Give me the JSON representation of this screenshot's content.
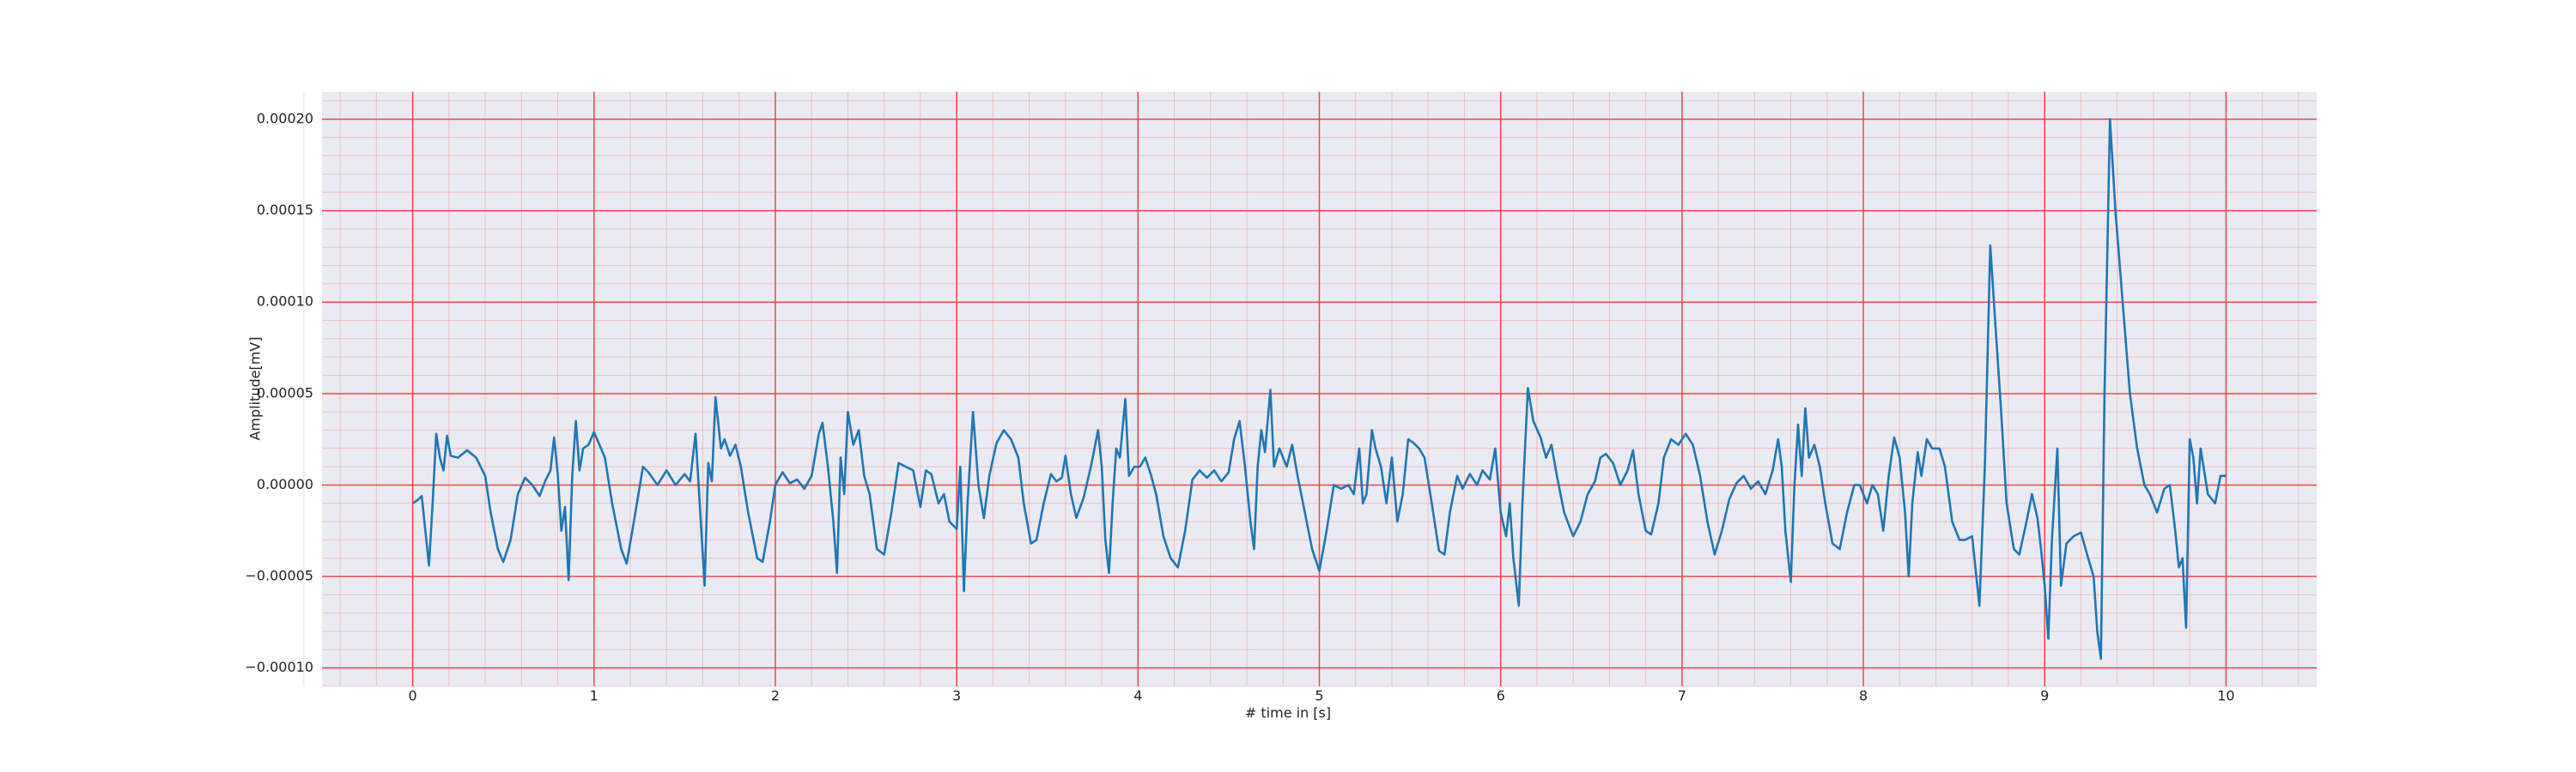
{
  "chart_data": {
    "type": "line",
    "xlabel": "# time in [s]",
    "ylabel": "Amplitude[mV]",
    "color": "#1f77b4",
    "grid": true,
    "grid_color": "#f04545",
    "minor_grid": true,
    "background": "#eaeaf2",
    "xlim": [
      -0.5,
      10.5
    ],
    "xticks": [
      0,
      1,
      2,
      3,
      4,
      5,
      6,
      7,
      8,
      9,
      10
    ],
    "ylim": [
      -0.00011,
      0.000215
    ],
    "yticks": [
      {
        "value": -0.0001,
        "label": "−0.00010"
      },
      {
        "value": -5e-05,
        "label": "−0.00005"
      },
      {
        "value": 0,
        "label": "0.00000"
      },
      {
        "value": 5e-05,
        "label": "0.00005"
      },
      {
        "value": 0.0001,
        "label": "0.00010"
      },
      {
        "value": 0.00015,
        "label": "0.00015"
      },
      {
        "value": 0.0002,
        "label": "0.00020"
      }
    ],
    "x": [
      0.0,
      0.03,
      0.05,
      0.07,
      0.09,
      0.11,
      0.13,
      0.15,
      0.17,
      0.19,
      0.21,
      0.25,
      0.3,
      0.35,
      0.4,
      0.43,
      0.47,
      0.5,
      0.54,
      0.58,
      0.62,
      0.66,
      0.7,
      0.73,
      0.76,
      0.78,
      0.8,
      0.82,
      0.84,
      0.86,
      0.88,
      0.9,
      0.92,
      0.94,
      0.97,
      1.0,
      1.03,
      1.06,
      1.1,
      1.15,
      1.18,
      1.22,
      1.27,
      1.3,
      1.35,
      1.4,
      1.45,
      1.5,
      1.53,
      1.56,
      1.58,
      1.61,
      1.63,
      1.65,
      1.67,
      1.7,
      1.72,
      1.75,
      1.78,
      1.81,
      1.85,
      1.9,
      1.93,
      1.97,
      2.0,
      2.04,
      2.08,
      2.12,
      2.16,
      2.2,
      2.24,
      2.26,
      2.29,
      2.32,
      2.34,
      2.36,
      2.38,
      2.4,
      2.43,
      2.46,
      2.49,
      2.52,
      2.56,
      2.6,
      2.64,
      2.68,
      2.72,
      2.76,
      2.8,
      2.83,
      2.86,
      2.9,
      2.93,
      2.96,
      3.0,
      3.02,
      3.04,
      3.06,
      3.09,
      3.12,
      3.15,
      3.18,
      3.22,
      3.26,
      3.3,
      3.34,
      3.37,
      3.41,
      3.44,
      3.48,
      3.52,
      3.55,
      3.58,
      3.6,
      3.63,
      3.66,
      3.7,
      3.74,
      3.78,
      3.8,
      3.82,
      3.84,
      3.86,
      3.88,
      3.9,
      3.93,
      3.95,
      3.98,
      4.01,
      4.04,
      4.07,
      4.1,
      4.14,
      4.18,
      4.22,
      4.26,
      4.3,
      4.34,
      4.38,
      4.42,
      4.46,
      4.5,
      4.53,
      4.56,
      4.59,
      4.62,
      4.64,
      4.66,
      4.68,
      4.7,
      4.73,
      4.75,
      4.78,
      4.82,
      4.85,
      4.88,
      4.92,
      4.96,
      5.0,
      5.04,
      5.08,
      5.12,
      5.16,
      5.19,
      5.22,
      5.24,
      5.26,
      5.29,
      5.31,
      5.34,
      5.37,
      5.4,
      5.43,
      5.46,
      5.49,
      5.52,
      5.55,
      5.58,
      5.62,
      5.66,
      5.69,
      5.72,
      5.76,
      5.79,
      5.83,
      5.87,
      5.9,
      5.94,
      5.97,
      6.0,
      6.03,
      6.05,
      6.07,
      6.1,
      6.12,
      6.15,
      6.18,
      6.22,
      6.25,
      6.28,
      6.31,
      6.35,
      6.4,
      6.44,
      6.48,
      6.52,
      6.55,
      6.58,
      6.62,
      6.66,
      6.7,
      6.73,
      6.76,
      6.8,
      6.83,
      6.87,
      6.9,
      6.94,
      6.98,
      7.02,
      7.06,
      7.1,
      7.14,
      7.18,
      7.22,
      7.26,
      7.3,
      7.34,
      7.38,
      7.42,
      7.46,
      7.5,
      7.53,
      7.55,
      7.57,
      7.6,
      7.62,
      7.64,
      7.66,
      7.68,
      7.7,
      7.73,
      7.76,
      7.79,
      7.83,
      7.87,
      7.91,
      7.95,
      7.98,
      8.02,
      8.05,
      8.08,
      8.11,
      8.14,
      8.17,
      8.2,
      8.23,
      8.25,
      8.27,
      8.3,
      8.32,
      8.35,
      8.38,
      8.42,
      8.45,
      8.49,
      8.53,
      8.56,
      8.6,
      8.64,
      8.67,
      8.7,
      8.73,
      8.76,
      8.79,
      8.83,
      8.86,
      8.9,
      8.93,
      8.96,
      8.98,
      9.0,
      9.02,
      9.04,
      9.07,
      9.09,
      9.12,
      9.16,
      9.2,
      9.24,
      9.27,
      9.29,
      9.31,
      9.33,
      9.36,
      9.39,
      9.43,
      9.47,
      9.51,
      9.55,
      9.58,
      9.62,
      9.66,
      9.69,
      9.72,
      9.74,
      9.76,
      9.78,
      9.8,
      9.82,
      9.84,
      9.86,
      9.9,
      9.94,
      9.97,
      10.0
    ],
    "values": [
      -1e-05,
      -8e-06,
      -6e-06,
      -2.5e-05,
      -4.4e-05,
      -1e-05,
      2.8e-05,
      1.5e-05,
      8e-06,
      2.7e-05,
      1.6e-05,
      1.5e-05,
      1.9e-05,
      1.5e-05,
      5e-06,
      -1.5e-05,
      -3.5e-05,
      -4.2e-05,
      -3e-05,
      -5e-06,
      4e-06,
      0.0,
      -6e-06,
      2e-06,
      8e-06,
      2.6e-05,
      6e-06,
      -2.5e-05,
      -1.2e-05,
      -5.2e-05,
      5e-06,
      3.5e-05,
      8e-06,
      2e-05,
      2.2e-05,
      2.9e-05,
      2.2e-05,
      1.5e-05,
      -1e-05,
      -3.5e-05,
      -4.3e-05,
      -2e-05,
      1e-05,
      7e-06,
      0.0,
      8e-06,
      0.0,
      6e-06,
      2e-06,
      2.8e-05,
      -5e-06,
      -5.5e-05,
      1.2e-05,
      2e-06,
      4.8e-05,
      2e-05,
      2.5e-05,
      1.6e-05,
      2.2e-05,
      1e-05,
      -1.5e-05,
      -4e-05,
      -4.2e-05,
      -2e-05,
      0.0,
      7e-06,
      1e-06,
      3e-06,
      -2e-06,
      5e-06,
      2.8e-05,
      3.4e-05,
      1e-05,
      -2e-05,
      -4.8e-05,
      1.5e-05,
      -5e-06,
      4e-05,
      2.2e-05,
      3e-05,
      5e-06,
      -5e-06,
      -3.5e-05,
      -3.8e-05,
      -1.5e-05,
      1.2e-05,
      1e-05,
      8e-06,
      -1.2e-05,
      8e-06,
      6e-06,
      -1e-05,
      -5e-06,
      -2e-05,
      -2.4e-05,
      1e-05,
      -5.8e-05,
      -1e-05,
      4e-05,
      0.0,
      -1.8e-05,
      5e-06,
      2.3e-05,
      3e-05,
      2.5e-05,
      1.5e-05,
      -1e-05,
      -3.2e-05,
      -3e-05,
      -1e-05,
      6e-06,
      2e-06,
      4e-06,
      1.6e-05,
      -5e-06,
      -1.8e-05,
      -7e-06,
      1e-05,
      3e-05,
      1e-05,
      -3e-05,
      -4.8e-05,
      -1e-05,
      2e-05,
      1.5e-05,
      4.7e-05,
      5e-06,
      1e-05,
      1e-05,
      1.5e-05,
      6e-06,
      -5e-06,
      -2.8e-05,
      -4e-05,
      -4.5e-05,
      -2.5e-05,
      3e-06,
      8e-06,
      4e-06,
      8e-06,
      2e-06,
      7e-06,
      2.5e-05,
      3.5e-05,
      1e-05,
      -2e-05,
      -3.5e-05,
      1e-05,
      3e-05,
      1.8e-05,
      5.2e-05,
      1e-05,
      2e-05,
      1e-05,
      2.2e-05,
      5e-06,
      -1.5e-05,
      -3.5e-05,
      -4.7e-05,
      -2.5e-05,
      0.0,
      -2e-06,
      0.0,
      -5e-06,
      2e-05,
      -1e-05,
      -5e-06,
      3e-05,
      2e-05,
      1e-05,
      -1e-05,
      1.5e-05,
      -2e-05,
      -5e-06,
      2.5e-05,
      2.3e-05,
      2e-05,
      1.5e-05,
      -1e-05,
      -3.6e-05,
      -3.8e-05,
      -1.5e-05,
      5e-06,
      -2e-06,
      6e-06,
      0.0,
      8e-06,
      3e-06,
      2e-05,
      -1.5e-05,
      -2.8e-05,
      -1e-05,
      -4e-05,
      -6.6e-05,
      -1e-05,
      5.3e-05,
      3.5e-05,
      2.6e-05,
      1.5e-05,
      2.2e-05,
      5e-06,
      -1.5e-05,
      -2.8e-05,
      -2e-05,
      -5e-06,
      2e-06,
      1.5e-05,
      1.7e-05,
      1.2e-05,
      0.0,
      8e-06,
      1.9e-05,
      -5e-06,
      -2.5e-05,
      -2.7e-05,
      -1e-05,
      1.5e-05,
      2.5e-05,
      2.2e-05,
      2.8e-05,
      2.2e-05,
      5e-06,
      -2e-05,
      -3.8e-05,
      -2.5e-05,
      -8e-06,
      1e-06,
      5e-06,
      -2e-06,
      2e-06,
      -5e-06,
      8e-06,
      2.5e-05,
      1e-05,
      -2.5e-05,
      -5.3e-05,
      0.0,
      3.3e-05,
      5e-06,
      4.2e-05,
      1.5e-05,
      2.2e-05,
      1e-05,
      -1e-05,
      -3.2e-05,
      -3.5e-05,
      -1.5e-05,
      0.0,
      0.0,
      -1e-05,
      0.0,
      -5e-06,
      -2.5e-05,
      5e-06,
      2.6e-05,
      1.5e-05,
      -1.5e-05,
      -5e-05,
      -1e-05,
      1.8e-05,
      5e-06,
      2.5e-05,
      2e-05,
      2e-05,
      1e-05,
      -2e-05,
      -3e-05,
      -3e-05,
      -2.8e-05,
      -6.6e-05,
      1e-05,
      0.000131,
      8.5e-05,
      4e-05,
      -1e-05,
      -3.5e-05,
      -3.8e-05,
      -2e-05,
      -5e-06,
      -1.8e-05,
      -3.5e-05,
      -5.5e-05,
      -8.4e-05,
      -3e-05,
      2e-05,
      -5.5e-05,
      -3.2e-05,
      -2.8e-05,
      -2.6e-05,
      -4e-05,
      -5e-05,
      -8e-05,
      -9.5e-05,
      5e-05,
      0.0002,
      0.00015,
      0.0001,
      5e-05,
      2e-05,
      0.0,
      -5e-06,
      -1.5e-05,
      -2e-06,
      0.0,
      -2.5e-05,
      -4.5e-05,
      -4e-05,
      -7.8e-05,
      2.5e-05,
      1.5e-05,
      -1e-05,
      2e-05,
      -5e-06,
      -1e-05,
      5e-06,
      5e-06
    ]
  }
}
